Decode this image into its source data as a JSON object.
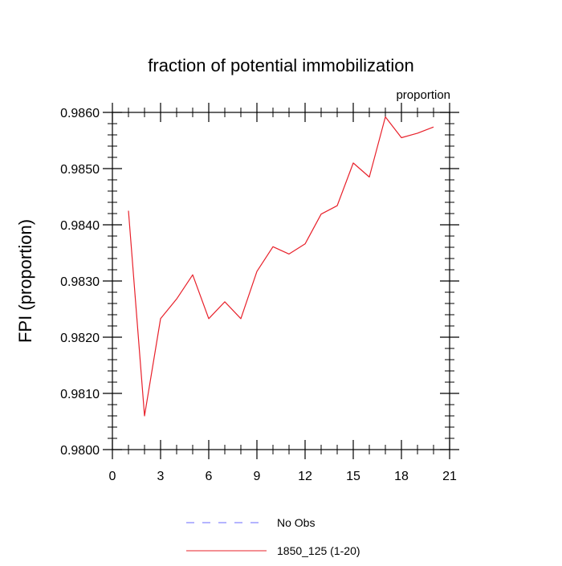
{
  "chart_data": {
    "type": "line",
    "title": "fraction of potential immobilization",
    "subtitle": "proportion",
    "xlabel": "",
    "ylabel": "FPI  (proportion)",
    "xlim": [
      0,
      21
    ],
    "ylim": [
      0.98,
      0.986
    ],
    "x_ticks": [
      "0",
      "3",
      "6",
      "9",
      "12",
      "15",
      "18",
      "21"
    ],
    "y_ticks": [
      "0.9800",
      "0.9810",
      "0.9820",
      "0.9830",
      "0.9840",
      "0.9850",
      "0.9860"
    ],
    "grid": false,
    "legend_position": "bottom",
    "legend": [
      {
        "label": "No Obs",
        "color": "#6a6aff",
        "style": "dashed"
      },
      {
        "label": "1850_125 (1-20)",
        "color": "#e8202a",
        "style": "solid"
      }
    ],
    "series": [
      {
        "name": "1850_125 (1-20)",
        "color": "#e8202a",
        "x": [
          1,
          2,
          3,
          4,
          5,
          6,
          7,
          8,
          9,
          10,
          11,
          12,
          13,
          14,
          15,
          16,
          17,
          18,
          19,
          20
        ],
        "values": [
          0.98425,
          0.9806,
          0.98233,
          0.98268,
          0.98311,
          0.98233,
          0.98263,
          0.98233,
          0.98317,
          0.98361,
          0.98348,
          0.98366,
          0.98419,
          0.98434,
          0.9851,
          0.98485,
          0.98592,
          0.98555,
          0.98563,
          0.98574
        ]
      }
    ]
  }
}
